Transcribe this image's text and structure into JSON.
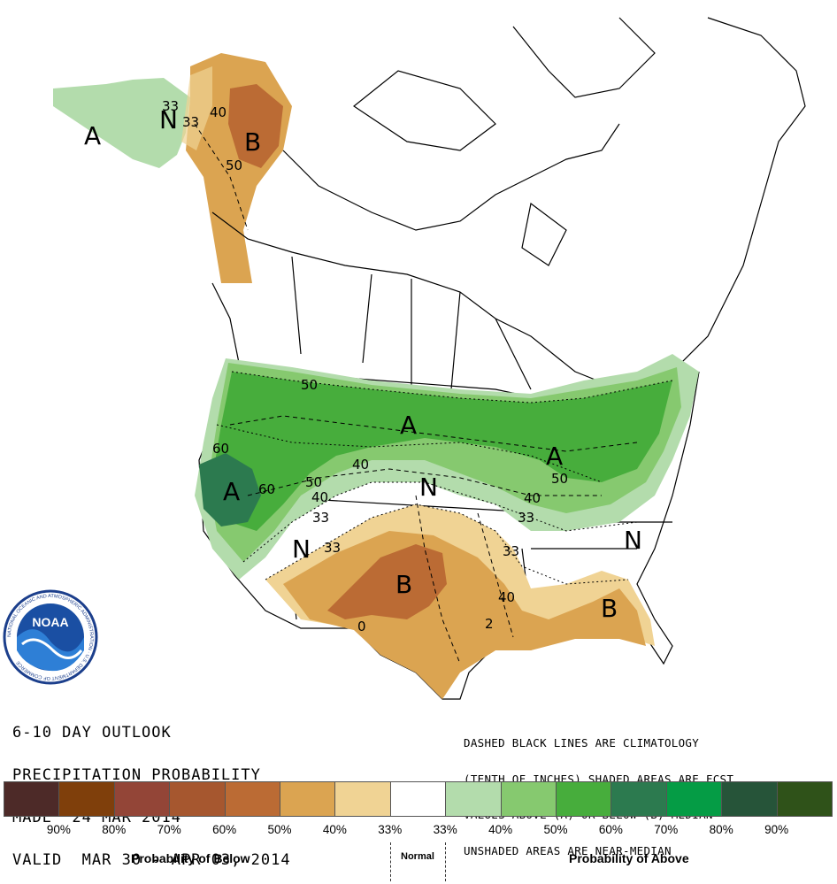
{
  "outlook": {
    "line1": "6-10 DAY OUTLOOK",
    "line2": "PRECIPITATION PROBABILITY",
    "line3": "MADE  24 MAR 2014",
    "line4": "VALID  MAR 30 - APR 03, 2014"
  },
  "notes": {
    "line1": "DASHED BLACK LINES ARE CLIMATOLOGY",
    "line2": "(TENTH OF INCHES) SHADED AREAS ARE FCST",
    "line3": "VALUES ABOVE (A) OR BELOW (B) MEDIAN",
    "line4": "UNSHADED AREAS ARE NEAR-MEDIAN"
  },
  "logo": {
    "text": "NOAA",
    "ring_text": "NATIONAL OCEANIC AND ATMOSPHERIC ADMINISTRATION · U.S. DEPARTMENT OF COMMERCE"
  },
  "legend": {
    "colors": [
      "#4d2a28",
      "#7f3f0b",
      "#934537",
      "#a6572f",
      "#bb6b34",
      "#dba451",
      "#f0d394",
      "#ffffff",
      "#b3dcac",
      "#86c96f",
      "#47ad3c",
      "#2c7a4f",
      "#059c45",
      "#265439",
      "#2f5219"
    ],
    "ticks": [
      "90%",
      "80%",
      "70%",
      "60%",
      "50%",
      "40%",
      "33%",
      "33%",
      "40%",
      "50%",
      "60%",
      "70%",
      "80%",
      "90%"
    ],
    "below_label": "Probability of Below",
    "normal_label": "Normal",
    "above_label": "Probability of Above"
  },
  "map": {
    "category_labels": [
      "A",
      "B",
      "A",
      "A",
      "A",
      "B",
      "B",
      "N",
      "N",
      "N",
      "N"
    ],
    "contour_labels": [
      "33",
      "33",
      "40",
      "50",
      "50",
      "60",
      "60",
      "50",
      "40",
      "33",
      "33",
      "40",
      "33",
      "50",
      "40",
      "33",
      "40",
      "0",
      "2"
    ]
  }
}
